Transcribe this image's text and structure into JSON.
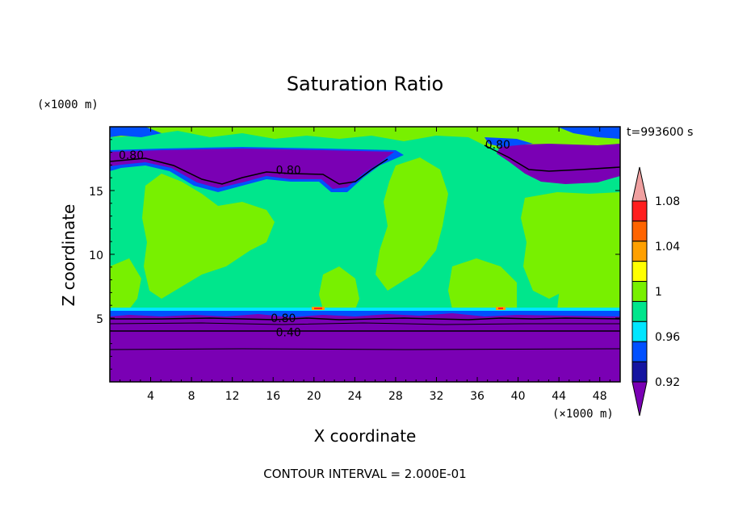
{
  "chart_data": {
    "type": "heatmap",
    "title": "Saturation Ratio",
    "xlabel": "X coordinate",
    "ylabel": "Z coordinate",
    "x_unit": "(×1000 m)",
    "y_unit": "(×1000 m)",
    "time_label": "t=993600 s",
    "footer": "CONTOUR INTERVAL = 2.000E-01",
    "xlim": [
      0,
      50
    ],
    "ylim": [
      0,
      20
    ],
    "x_ticks": [
      4,
      8,
      12,
      16,
      20,
      24,
      28,
      32,
      36,
      40,
      44,
      48
    ],
    "y_ticks": [
      5,
      10,
      15
    ],
    "colorbar": {
      "levels": [
        0.9,
        0.92,
        0.94,
        0.96,
        0.98,
        1.0,
        1.02,
        1.04,
        1.06,
        1.08,
        1.1
      ],
      "tick_labels": [
        "1.08",
        "1.04",
        "1",
        "0.96",
        "0.92"
      ],
      "tick_values": [
        1.08,
        1.04,
        1.0,
        0.96,
        0.92
      ],
      "colors": [
        "#7a00b4",
        "#1414a0",
        "#0050ff",
        "#00e6ff",
        "#00e68c",
        "#78f000",
        "#ffff00",
        "#ffa000",
        "#ff6400",
        "#ff1e1e",
        "#f0a0a0"
      ],
      "extend": "both"
    },
    "contour_labels": [
      {
        "text": "0.80",
        "x": 2.1,
        "z": 17.8
      },
      {
        "text": "0.80",
        "x": 17.5,
        "z": 16.6
      },
      {
        "text": "0.80",
        "x": 38.0,
        "z": 18.6
      },
      {
        "text": "0.80",
        "x": 17.0,
        "z": 5.0
      },
      {
        "text": "0.40",
        "x": 17.5,
        "z": 3.9
      }
    ]
  },
  "colors": {
    "deep_purple": "#7a00b4",
    "dark_blue": "#1414a0",
    "blue": "#0050ff",
    "cyan": "#00e6ff",
    "teal_green": "#00e68c",
    "lime": "#78f000",
    "yellow": "#ffff00",
    "orange": "#ffa000",
    "red_orange": "#ff6400",
    "red": "#ff1e1e",
    "pink": "#f0a0a0"
  }
}
